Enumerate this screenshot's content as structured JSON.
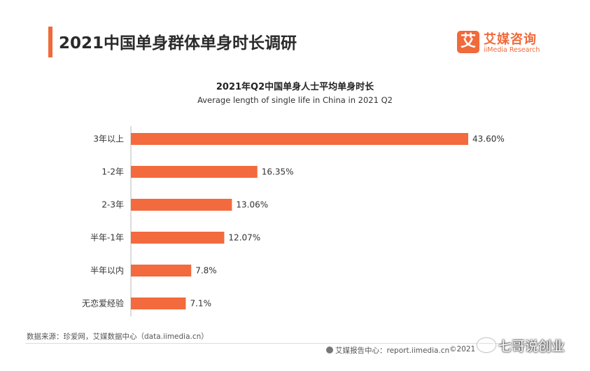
{
  "page": {
    "title": "2021中国单身群体单身时长调研"
  },
  "logo": {
    "mark": "艾",
    "name_cn": "艾媒咨询",
    "name_en": "iiMedia Research"
  },
  "colors": {
    "accent": "#f06a3a",
    "bar": "#f26a3d"
  },
  "chart_data": {
    "type": "bar",
    "orientation": "horizontal",
    "title": "2021年Q2中国单身人士平均单身时长",
    "subtitle": "Average length of single life in China in 2021 Q2",
    "categories": [
      "3年以上",
      "1-2年",
      "2-3年",
      "半年-1年",
      "半年以内",
      "无恋爱经验"
    ],
    "values": [
      43.6,
      16.35,
      13.06,
      12.07,
      7.8,
      7.1
    ],
    "value_labels": [
      "43.60%",
      "16.35%",
      "13.06%",
      "12.07%",
      "7.8%",
      "7.1%"
    ],
    "unit": "%",
    "xlim": [
      0,
      43.6
    ],
    "grid": false,
    "legend": "none"
  },
  "footer": {
    "source": "数据来源：珍爱网，艾媒数据中心（data.iimedia.cn）",
    "report": "艾媒报告中心：report.iimedia.cn",
    "copyright": "©2021",
    "watermark": "七哥说创业"
  }
}
